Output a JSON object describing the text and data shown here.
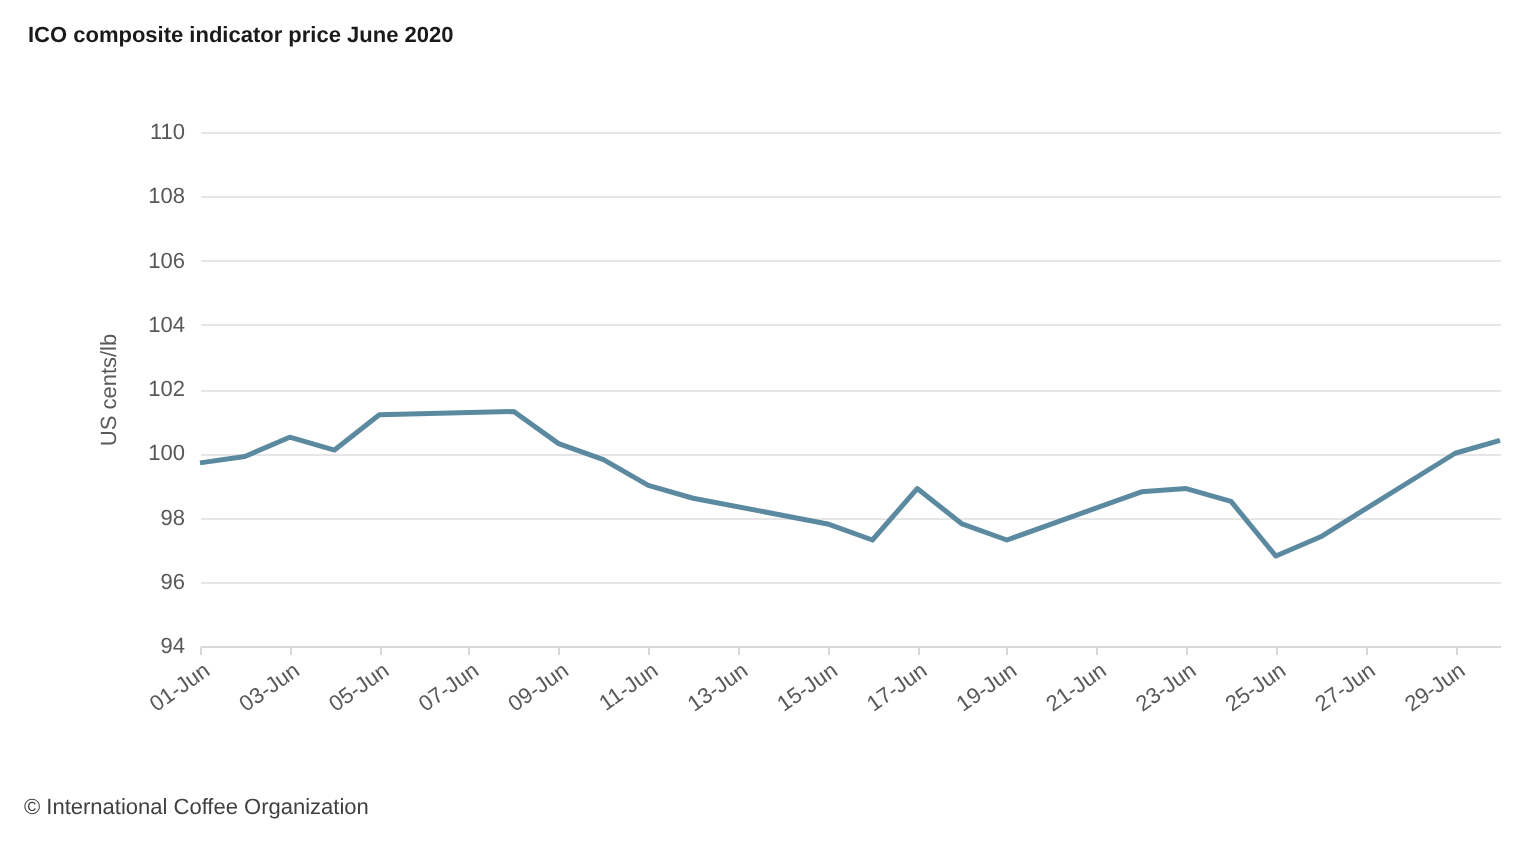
{
  "chart_data": {
    "type": "line",
    "title": "ICO composite indicator price June 2020",
    "ylabel": "US cents/lb",
    "annotations": [
      "© International Coffee Organization"
    ],
    "x": [
      "2020-06-01",
      "2020-06-02",
      "2020-06-03",
      "2020-06-04",
      "2020-06-05",
      "2020-06-08",
      "2020-06-09",
      "2020-06-10",
      "2020-06-11",
      "2020-06-12",
      "2020-06-15",
      "2020-06-16",
      "2020-06-17",
      "2020-06-18",
      "2020-06-19",
      "2020-06-22",
      "2020-06-23",
      "2020-06-24",
      "2020-06-25",
      "2020-06-26",
      "2020-06-29",
      "2020-06-30"
    ],
    "series": [
      {
        "color": "#5b8aa0",
        "values": [
          99.7,
          99.9,
          100.5,
          100.1,
          101.2,
          101.3,
          100.3,
          99.8,
          99.0,
          98.6,
          97.8,
          97.3,
          98.9,
          97.8,
          97.3,
          98.8,
          98.9,
          98.5,
          96.8,
          97.4,
          100.0,
          100.4
        ]
      }
    ],
    "xlim": [
      "2020-06-01",
      "2020-06-30"
    ],
    "xticks": [
      {
        "value": "2020-06-01",
        "label": "01-Jun"
      },
      {
        "value": "2020-06-03",
        "label": "03-Jun"
      },
      {
        "value": "2020-06-05",
        "label": "05-Jun"
      },
      {
        "value": "2020-06-07",
        "label": "07-Jun"
      },
      {
        "value": "2020-06-09",
        "label": "09-Jun"
      },
      {
        "value": "2020-06-11",
        "label": "11-Jun"
      },
      {
        "value": "2020-06-13",
        "label": "13-Jun"
      },
      {
        "value": "2020-06-15",
        "label": "15-Jun"
      },
      {
        "value": "2020-06-17",
        "label": "17-Jun"
      },
      {
        "value": "2020-06-19",
        "label": "19-Jun"
      },
      {
        "value": "2020-06-21",
        "label": "21-Jun"
      },
      {
        "value": "2020-06-23",
        "label": "23-Jun"
      },
      {
        "value": "2020-06-25",
        "label": "25-Jun"
      },
      {
        "value": "2020-06-27",
        "label": "27-Jun"
      },
      {
        "value": "2020-06-29",
        "label": "29-Jun"
      }
    ],
    "ylim": [
      94,
      110
    ],
    "yticks": [
      94,
      96,
      98,
      100,
      102,
      104,
      106,
      108,
      110
    ],
    "grid": "y",
    "legend": false,
    "marker": "none",
    "line_style": "solid"
  }
}
